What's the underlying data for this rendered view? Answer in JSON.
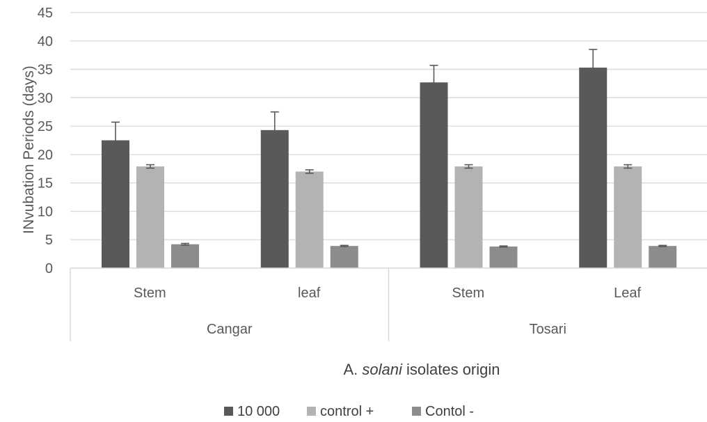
{
  "chart_data": {
    "type": "bar",
    "ylabel": "INvubation Periods (days)",
    "xlabel_parts": [
      "A. ",
      "solani",
      " isolates origin"
    ],
    "ylim": [
      0,
      45
    ],
    "yticks": [
      0,
      5,
      10,
      15,
      20,
      25,
      30,
      35,
      40,
      45
    ],
    "grid": true,
    "legend_position": "bottom",
    "groups": [
      {
        "label": "Cangar",
        "categories": [
          "Stem",
          "leaf"
        ]
      },
      {
        "label": "Tosari",
        "categories": [
          "Stem",
          "Leaf"
        ]
      }
    ],
    "series": [
      {
        "name": "10 000",
        "color": "#595959",
        "values": [
          22.5,
          24.3,
          32.7,
          35.3
        ],
        "errors": [
          3.2,
          3.2,
          3.0,
          3.2
        ]
      },
      {
        "name": "control +",
        "color": "#b3b3b3",
        "values": [
          17.9,
          17.0,
          17.9,
          17.9
        ],
        "errors": [
          0.3,
          0.3,
          0.3,
          0.3
        ]
      },
      {
        "name": "Contol -",
        "color": "#8c8c8c",
        "values": [
          4.2,
          3.9,
          3.8,
          3.9
        ],
        "errors": [
          0.15,
          0.1,
          0.1,
          0.1
        ]
      }
    ]
  }
}
